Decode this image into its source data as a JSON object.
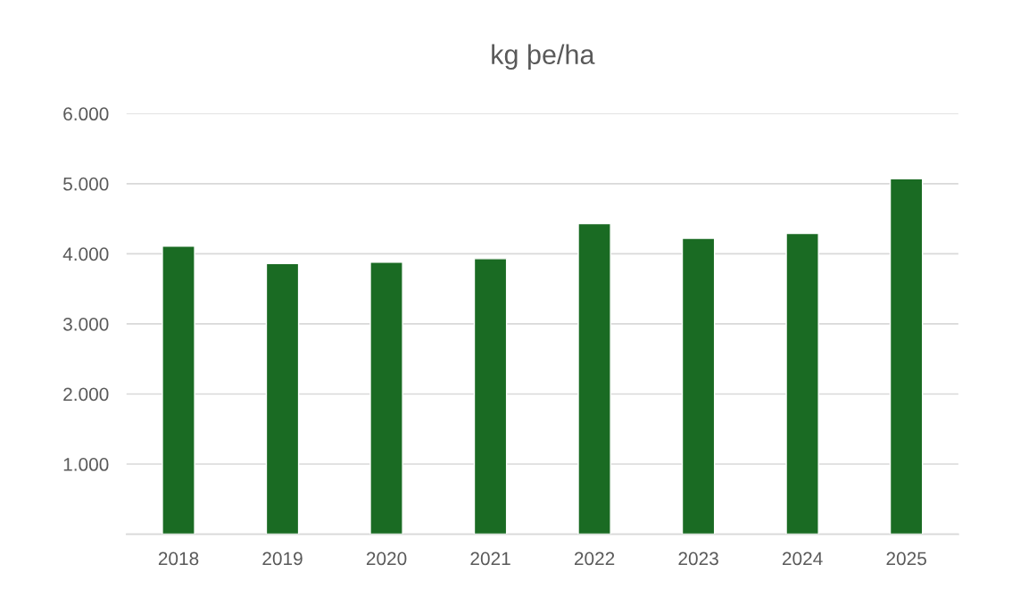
{
  "chart_data": {
    "type": "bar",
    "title": "kg þe/ha",
    "categories": [
      "2018",
      "2019",
      "2020",
      "2021",
      "2022",
      "2023",
      "2024",
      "2025"
    ],
    "values": [
      4110,
      3860,
      3880,
      3930,
      4430,
      4220,
      4290,
      5070
    ],
    "color": "#1a6b23",
    "ylim": [
      0,
      6000
    ],
    "yticks": [
      {
        "value": 0,
        "label": null
      },
      {
        "value": 1000,
        "label": "1.000"
      },
      {
        "value": 2000,
        "label": "2.000"
      },
      {
        "value": 3000,
        "label": "3.000"
      },
      {
        "value": 4000,
        "label": "4.000"
      },
      {
        "value": 5000,
        "label": "5.000"
      },
      {
        "value": 6000,
        "label": "6.000"
      }
    ],
    "grid": "y",
    "legend": false
  }
}
